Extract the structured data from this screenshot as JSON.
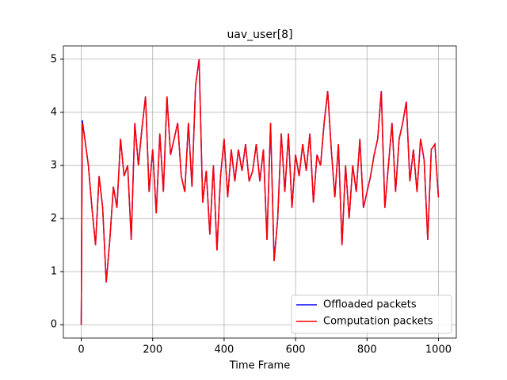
{
  "chart_data": {
    "type": "line",
    "title": "uav_user[8]",
    "xlabel": "Time Frame",
    "x": [
      0,
      3,
      10,
      20,
      30,
      40,
      50,
      60,
      70,
      80,
      90,
      100,
      110,
      120,
      130,
      140,
      150,
      160,
      170,
      180,
      190,
      200,
      210,
      220,
      230,
      240,
      250,
      260,
      270,
      280,
      290,
      300,
      310,
      320,
      330,
      340,
      350,
      360,
      370,
      380,
      390,
      400,
      410,
      420,
      430,
      440,
      450,
      460,
      470,
      480,
      490,
      500,
      510,
      520,
      530,
      540,
      550,
      560,
      570,
      580,
      590,
      600,
      610,
      620,
      630,
      640,
      650,
      660,
      670,
      680,
      690,
      700,
      710,
      720,
      730,
      740,
      750,
      760,
      770,
      780,
      790,
      800,
      810,
      820,
      830,
      840,
      850,
      860,
      870,
      880,
      890,
      900,
      910,
      920,
      930,
      940,
      950,
      960,
      970,
      980,
      990,
      1000
    ],
    "series": [
      {
        "name": "Offloaded packets",
        "color": "#0000ff",
        "values": [
          0,
          3.85,
          3.5,
          3.0,
          2.2,
          1.5,
          2.8,
          2.2,
          0.8,
          1.6,
          2.6,
          2.2,
          3.5,
          2.8,
          3.0,
          1.6,
          3.8,
          3.0,
          3.7,
          4.3,
          2.5,
          3.3,
          2.1,
          3.6,
          2.5,
          4.3,
          3.2,
          3.5,
          3.8,
          2.8,
          2.5,
          3.8,
          2.6,
          4.5,
          5.0,
          2.3,
          2.9,
          1.7,
          3.0,
          1.4,
          2.8,
          3.5,
          2.4,
          3.3,
          2.7,
          3.3,
          2.9,
          3.4,
          2.7,
          2.9,
          3.4,
          2.7,
          3.3,
          1.6,
          3.8,
          1.2,
          2.0,
          3.6,
          2.5,
          3.6,
          2.2,
          3.2,
          2.8,
          3.4,
          2.9,
          3.6,
          2.3,
          3.2,
          3.0,
          3.8,
          4.4,
          3.3,
          2.4,
          3.4,
          1.5,
          3.0,
          2.0,
          3.0,
          2.5,
          3.5,
          2.2,
          2.5,
          2.8,
          3.2,
          3.5,
          4.4,
          2.2,
          3.0,
          3.8,
          2.5,
          3.5,
          3.8,
          4.2,
          2.7,
          3.3,
          2.5,
          3.5,
          3.1,
          1.6,
          3.3,
          3.4,
          2.4
        ]
      },
      {
        "name": "Computation packets",
        "color": "#ff0000",
        "values": [
          0,
          3.8,
          3.5,
          3.0,
          2.2,
          1.5,
          2.8,
          2.2,
          0.8,
          1.6,
          2.6,
          2.2,
          3.5,
          2.8,
          3.0,
          1.6,
          3.8,
          3.0,
          3.7,
          4.3,
          2.5,
          3.3,
          2.1,
          3.6,
          2.5,
          4.3,
          3.2,
          3.5,
          3.8,
          2.8,
          2.5,
          3.8,
          2.6,
          4.5,
          5.0,
          2.3,
          2.9,
          1.7,
          3.0,
          1.4,
          2.8,
          3.5,
          2.4,
          3.3,
          2.7,
          3.3,
          2.9,
          3.4,
          2.7,
          2.9,
          3.4,
          2.7,
          3.3,
          1.6,
          3.8,
          1.2,
          2.0,
          3.6,
          2.5,
          3.6,
          2.2,
          3.2,
          2.8,
          3.4,
          2.9,
          3.6,
          2.3,
          3.2,
          3.0,
          3.8,
          4.4,
          3.3,
          2.4,
          3.4,
          1.5,
          3.0,
          2.0,
          3.0,
          2.5,
          3.5,
          2.2,
          2.5,
          2.8,
          3.2,
          3.5,
          4.4,
          2.2,
          3.0,
          3.8,
          2.5,
          3.5,
          3.8,
          4.2,
          2.7,
          3.3,
          2.5,
          3.5,
          3.1,
          1.6,
          3.3,
          3.4,
          2.4
        ]
      }
    ],
    "xlim": [
      -50,
      1050
    ],
    "ylim": [
      -0.25,
      5.25
    ],
    "xticks": [
      0,
      200,
      400,
      600,
      800,
      1000
    ],
    "yticks": [
      0,
      1,
      2,
      3,
      4,
      5
    ],
    "grid": true,
    "legend": "lower right"
  }
}
